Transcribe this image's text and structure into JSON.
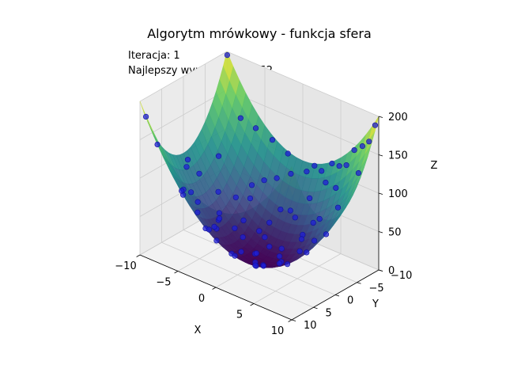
{
  "chart_data": {
    "type": "surface",
    "title": "Algorytm mrówkowy - funkcja sfera",
    "annotations": [
      {
        "label": "Iteracja:",
        "value": "1"
      },
      {
        "label": "Najlepszy wynik:",
        "value": "1.7011152"
      }
    ],
    "function": "z = x^2 + y^2",
    "xlabel": "X",
    "ylabel": "Y",
    "zlabel": "Z",
    "xlim": [
      -10,
      10
    ],
    "ylim": [
      -10,
      10
    ],
    "zlim": [
      0,
      200
    ],
    "x_ticks": [
      "−10",
      "−5",
      "0",
      "5",
      "10"
    ],
    "y_ticks": [
      "−10",
      "−5",
      "0",
      "5",
      "10"
    ],
    "z_ticks": [
      "0",
      "50",
      "100",
      "150",
      "200"
    ],
    "colormap": [
      "#440154",
      "#3b528b",
      "#21918c",
      "#5ec962",
      "#fde725"
    ],
    "grid": true,
    "series": [
      {
        "kind": "scatter",
        "color": "#1f1fd6",
        "points": [
          [
            -9.6,
            -0.3
          ],
          [
            -9.3,
            0.5
          ],
          [
            -8.6,
            -1.2
          ],
          [
            -7.8,
            2.1
          ],
          [
            -6.9,
            -2.6
          ],
          [
            -6.2,
            3.4
          ],
          [
            -5.5,
            -4.2
          ],
          [
            -5.0,
            1.1
          ],
          [
            -4.6,
            -6.3
          ],
          [
            -4.1,
            5.2
          ],
          [
            -3.6,
            -7.4
          ],
          [
            -3.2,
            -1.8
          ],
          [
            -2.8,
            6.7
          ],
          [
            -2.4,
            -8.2
          ],
          [
            -2.0,
            2.9
          ],
          [
            -1.6,
            -5.1
          ],
          [
            -1.3,
            8.1
          ],
          [
            -1.0,
            -9.0
          ],
          [
            -0.7,
            4.4
          ],
          [
            -0.4,
            -3.0
          ],
          [
            -0.1,
            9.2
          ],
          [
            0.2,
            -6.8
          ],
          [
            0.5,
            1.6
          ],
          [
            0.8,
            -9.5
          ],
          [
            1.1,
            6.1
          ],
          [
            1.4,
            -2.2
          ],
          [
            1.8,
            8.8
          ],
          [
            2.1,
            -7.9
          ],
          [
            2.5,
            3.5
          ],
          [
            2.9,
            -4.9
          ],
          [
            3.3,
            9.4
          ],
          [
            3.7,
            -8.8
          ],
          [
            4.1,
            0.7
          ],
          [
            4.5,
            -6.0
          ],
          [
            4.9,
            7.3
          ],
          [
            5.3,
            -3.4
          ],
          [
            5.8,
            5.0
          ],
          [
            6.2,
            -9.2
          ],
          [
            6.7,
            2.4
          ],
          [
            7.1,
            -5.7
          ],
          [
            7.6,
            8.4
          ],
          [
            8.0,
            -1.4
          ],
          [
            8.5,
            6.6
          ],
          [
            9.0,
            -7.1
          ],
          [
            9.4,
            4.0
          ],
          [
            9.7,
            -9.7
          ],
          [
            -8.9,
            7.9
          ],
          [
            -7.4,
            -8.6
          ],
          [
            -6.6,
            6.0
          ],
          [
            -5.8,
            -9.3
          ],
          [
            -4.9,
            8.9
          ],
          [
            -3.9,
            -9.8
          ],
          [
            -2.6,
            9.6
          ],
          [
            -1.9,
            -9.9
          ],
          [
            0.4,
            9.9
          ],
          [
            1.6,
            -9.9
          ],
          [
            2.7,
            -9.6
          ],
          [
            3.9,
            -9.9
          ],
          [
            5.1,
            -9.5
          ],
          [
            6.9,
            -9.8
          ],
          [
            8.2,
            -9.4
          ],
          [
            9.3,
            -9.0
          ],
          [
            -9.9,
            -9.9
          ],
          [
            -9.5,
            9.5
          ],
          [
            4.6,
            3.0
          ],
          [
            -3.4,
            3.9
          ],
          [
            2.2,
            -0.8
          ],
          [
            -1.2,
            -1.1
          ],
          [
            0.9,
            0.6
          ],
          [
            -0.3,
            0.4
          ],
          [
            3.0,
            5.9
          ],
          [
            -5.6,
            -0.6
          ],
          [
            6.4,
            0.3
          ],
          [
            -7.2,
            5.3
          ],
          [
            7.8,
            3.9
          ],
          [
            -8.1,
            -4.8
          ],
          [
            1.3,
            3.2
          ],
          [
            -2.2,
            -3.8
          ],
          [
            5.5,
            -8.0
          ],
          [
            -4.3,
            -5.4
          ]
        ]
      }
    ]
  }
}
